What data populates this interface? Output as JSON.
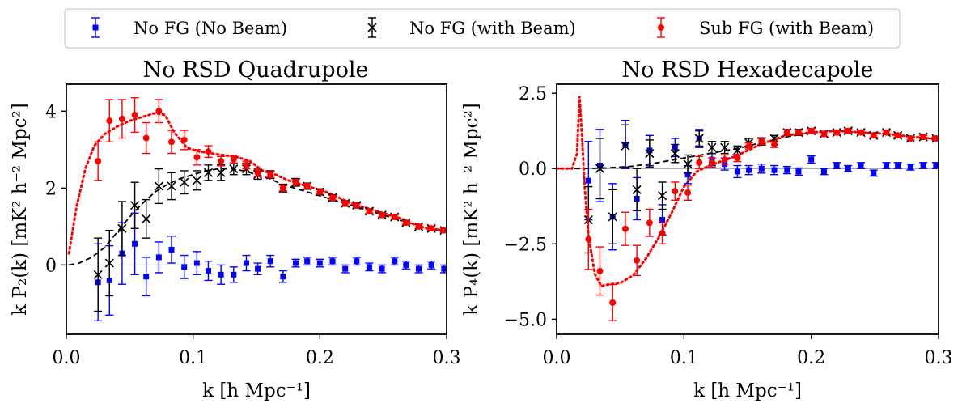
{
  "legend": [
    {
      "label": "No FG (No Beam)",
      "color": "#0000ff",
      "marker": "square"
    },
    {
      "label": "No FG (with Beam)",
      "color": "#000000",
      "marker": "x"
    },
    {
      "label": "Sub FG (with Beam)",
      "color": "#ff0000",
      "marker": "circle"
    }
  ],
  "chart_data": [
    {
      "type": "scatter",
      "title": "No RSD Quadrupole",
      "xlabel": "k [h Mpc⁻¹]",
      "ylabel": "k P₂(k) [mK² h⁻² Mpc²]",
      "xlim": [
        0.0,
        0.3
      ],
      "ylim": [
        -1.8,
        4.7
      ],
      "xticks": [
        0.0,
        0.1,
        0.2,
        0.3
      ],
      "xtick_labels": [
        "0.0",
        "0.1",
        "0.2",
        "0.3"
      ],
      "yticks": [
        0,
        2,
        4
      ],
      "ytick_labels": [
        "0",
        "2",
        "4"
      ],
      "zero_line": true,
      "series": [
        {
          "name": "No FG (No Beam)",
          "color": "#0000ff",
          "marker": "square",
          "x": [
            0.025,
            0.034,
            0.044,
            0.054,
            0.063,
            0.073,
            0.083,
            0.093,
            0.103,
            0.112,
            0.122,
            0.132,
            0.142,
            0.151,
            0.161,
            0.171,
            0.181,
            0.19,
            0.2,
            0.21,
            0.22,
            0.229,
            0.239,
            0.249,
            0.259,
            0.268,
            0.278,
            0.288,
            0.298
          ],
          "y": [
            -0.45,
            -0.4,
            0.3,
            0.55,
            -0.3,
            0.2,
            0.4,
            -0.05,
            0.05,
            -0.15,
            -0.25,
            -0.25,
            0.05,
            -0.1,
            0.1,
            -0.3,
            0.05,
            0.1,
            0.05,
            0.1,
            -0.1,
            0.1,
            -0.05,
            -0.1,
            0.1,
            0.0,
            -0.1,
            0.0,
            -0.1
          ],
          "err": [
            1.0,
            0.9,
            0.8,
            0.8,
            0.5,
            0.4,
            0.35,
            0.3,
            0.3,
            0.25,
            0.25,
            0.2,
            0.2,
            0.15,
            0.15,
            0.15,
            0.1,
            0.1,
            0.1,
            0.1,
            0.1,
            0.1,
            0.1,
            0.1,
            0.1,
            0.1,
            0.1,
            0.1,
            0.1
          ]
        },
        {
          "name": "No FG (with Beam)",
          "color": "#000000",
          "marker": "x",
          "x": [
            0.025,
            0.034,
            0.044,
            0.054,
            0.063,
            0.073,
            0.083,
            0.093,
            0.103,
            0.112,
            0.122,
            0.132,
            0.142,
            0.151,
            0.161,
            0.171,
            0.181,
            0.19,
            0.2,
            0.21,
            0.22,
            0.229,
            0.239,
            0.249,
            0.259,
            0.268,
            0.278,
            0.288,
            0.298
          ],
          "y": [
            -0.25,
            0.05,
            0.95,
            1.55,
            1.2,
            2.05,
            2.05,
            2.15,
            2.2,
            2.4,
            2.4,
            2.5,
            2.5,
            2.35,
            2.35,
            2.0,
            2.15,
            2.05,
            1.9,
            1.75,
            1.6,
            1.55,
            1.4,
            1.3,
            1.25,
            1.1,
            1.0,
            0.95,
            0.9
          ],
          "err": [
            0.95,
            0.85,
            0.7,
            0.6,
            0.5,
            0.45,
            0.35,
            0.3,
            0.25,
            0.2,
            0.2,
            0.15,
            0.15,
            0.12,
            0.1,
            0.1,
            0.1,
            0.08,
            0.08,
            0.08,
            0.07,
            0.07,
            0.06,
            0.06,
            0.06,
            0.05,
            0.05,
            0.05,
            0.05
          ]
        },
        {
          "name": "Sub FG (with Beam)",
          "color": "#ff0000",
          "marker": "circle",
          "x": [
            0.025,
            0.034,
            0.044,
            0.054,
            0.063,
            0.073,
            0.083,
            0.093,
            0.103,
            0.112,
            0.122,
            0.132,
            0.142,
            0.151,
            0.161,
            0.171,
            0.181,
            0.19,
            0.2,
            0.21,
            0.22,
            0.229,
            0.239,
            0.249,
            0.259,
            0.268,
            0.278,
            0.288,
            0.298
          ],
          "y": [
            2.7,
            3.75,
            3.8,
            3.9,
            3.3,
            4.0,
            3.2,
            3.25,
            2.8,
            2.95,
            2.7,
            2.75,
            2.6,
            2.4,
            2.35,
            2.0,
            2.15,
            2.05,
            1.9,
            1.75,
            1.6,
            1.55,
            1.4,
            1.3,
            1.25,
            1.1,
            1.0,
            0.95,
            0.9
          ],
          "err": [
            0.5,
            0.55,
            0.5,
            0.45,
            0.4,
            0.3,
            0.3,
            0.25,
            0.2,
            0.15,
            0.12,
            0.1,
            0.1,
            0.1,
            0.08,
            0.08,
            0.07,
            0.07,
            0.06,
            0.06,
            0.06,
            0.05,
            0.05,
            0.05,
            0.05,
            0.05,
            0.05,
            0.05,
            0.05
          ]
        }
      ],
      "lines": [
        {
          "name": "No FG model",
          "color": "#000000",
          "style": "dashed",
          "x": [
            0.002,
            0.01,
            0.02,
            0.03,
            0.04,
            0.05,
            0.06,
            0.07,
            0.08,
            0.09,
            0.1,
            0.11,
            0.12,
            0.13,
            0.14,
            0.15,
            0.16,
            0.17,
            0.18,
            0.19,
            0.2,
            0.21,
            0.22,
            0.23,
            0.24,
            0.25,
            0.26,
            0.27,
            0.28,
            0.29,
            0.3
          ],
          "y": [
            0.0,
            0.05,
            0.2,
            0.45,
            0.85,
            1.25,
            1.6,
            1.9,
            2.1,
            2.25,
            2.35,
            2.45,
            2.5,
            2.5,
            2.45,
            2.35,
            2.25,
            2.1,
            2.0,
            1.9,
            1.8,
            1.7,
            1.6,
            1.5,
            1.4,
            1.3,
            1.2,
            1.1,
            1.0,
            0.95,
            0.88
          ]
        },
        {
          "name": "Sub FG model",
          "color": "#ff0000",
          "style": "dotted",
          "x": [
            0.002,
            0.008,
            0.015,
            0.022,
            0.03,
            0.04,
            0.05,
            0.06,
            0.07,
            0.078,
            0.085,
            0.095,
            0.105,
            0.115,
            0.125,
            0.135,
            0.145,
            0.155,
            0.165,
            0.175,
            0.185,
            0.195,
            0.205,
            0.215,
            0.225,
            0.235,
            0.245,
            0.255,
            0.265,
            0.275,
            0.285,
            0.3
          ],
          "y": [
            0.3,
            1.5,
            2.5,
            3.1,
            3.4,
            3.6,
            3.75,
            3.85,
            3.95,
            3.9,
            3.45,
            3.05,
            2.95,
            2.9,
            2.85,
            2.8,
            2.7,
            2.45,
            2.35,
            2.2,
            2.1,
            2.0,
            1.9,
            1.75,
            1.6,
            1.5,
            1.4,
            1.3,
            1.2,
            1.05,
            0.95,
            0.88
          ]
        }
      ]
    },
    {
      "type": "scatter",
      "title": "No RSD Hexadecapole",
      "xlabel": "k [h Mpc⁻¹]",
      "ylabel": "k P₄(k) [mK² h⁻² Mpc²]",
      "xlim": [
        0.0,
        0.3
      ],
      "ylim": [
        -5.5,
        2.8
      ],
      "xticks": [
        0.0,
        0.1,
        0.2,
        0.3
      ],
      "xtick_labels": [
        "0.0",
        "0.1",
        "0.2",
        "0.3"
      ],
      "yticks": [
        2.5,
        0.0,
        -2.5,
        -5.0
      ],
      "ytick_labels": [
        "2.5",
        "0.0",
        "−2.5",
        "−5.0"
      ],
      "zero_line": true,
      "series": [
        {
          "name": "No FG (No Beam)",
          "color": "#0000ff",
          "marker": "square",
          "x": [
            0.025,
            0.034,
            0.044,
            0.054,
            0.063,
            0.073,
            0.083,
            0.093,
            0.103,
            0.112,
            0.122,
            0.132,
            0.142,
            0.151,
            0.161,
            0.171,
            0.181,
            0.19,
            0.2,
            0.21,
            0.22,
            0.229,
            0.239,
            0.249,
            0.259,
            0.268,
            0.278,
            0.288,
            0.298
          ],
          "y": [
            -0.4,
            0.1,
            -1.6,
            0.8,
            -1.0,
            0.6,
            -1.7,
            0.7,
            -0.2,
            1.0,
            0.3,
            0.15,
            -0.1,
            -0.05,
            0.0,
            -0.05,
            -0.05,
            -0.1,
            0.3,
            -0.1,
            0.1,
            0.0,
            0.1,
            -0.15,
            0.1,
            0.1,
            0.05,
            0.1,
            0.1
          ],
          "err": [
            1.3,
            1.2,
            1.1,
            0.8,
            0.7,
            0.5,
            0.5,
            0.3,
            0.3,
            0.3,
            0.2,
            0.2,
            0.2,
            0.15,
            0.15,
            0.15,
            0.12,
            0.12,
            0.12,
            0.1,
            0.1,
            0.1,
            0.1,
            0.1,
            0.1,
            0.1,
            0.1,
            0.1,
            0.1
          ]
        },
        {
          "name": "No FG (with Beam)",
          "color": "#000000",
          "marker": "x",
          "x": [
            0.025,
            0.034,
            0.044,
            0.054,
            0.063,
            0.073,
            0.083,
            0.093,
            0.103,
            0.112,
            0.122,
            0.132,
            0.142,
            0.151,
            0.161,
            0.171,
            0.181,
            0.19,
            0.2,
            0.21,
            0.22,
            0.229,
            0.239,
            0.249,
            0.259,
            0.268,
            0.278,
            0.288,
            0.298
          ],
          "y": [
            -1.7,
            0.0,
            -1.6,
            0.75,
            -0.7,
            0.5,
            -0.9,
            0.5,
            0.15,
            1.0,
            0.7,
            0.7,
            0.6,
            0.85,
            0.9,
            1.0,
            1.2,
            1.2,
            1.25,
            1.15,
            1.2,
            1.25,
            1.2,
            1.1,
            1.2,
            1.1,
            1.0,
            1.05,
            1.0
          ],
          "err": [
            1.1,
            1.0,
            0.9,
            0.7,
            0.7,
            0.45,
            0.45,
            0.3,
            0.3,
            0.25,
            0.2,
            0.2,
            0.15,
            0.15,
            0.12,
            0.1,
            0.1,
            0.1,
            0.08,
            0.08,
            0.08,
            0.07,
            0.07,
            0.07,
            0.06,
            0.06,
            0.06,
            0.06,
            0.06
          ]
        },
        {
          "name": "Sub FG (with Beam)",
          "color": "#ff0000",
          "marker": "circle",
          "x": [
            0.025,
            0.034,
            0.044,
            0.054,
            0.063,
            0.073,
            0.083,
            0.093,
            0.103,
            0.112,
            0.122,
            0.132,
            0.142,
            0.151,
            0.161,
            0.171,
            0.181,
            0.19,
            0.2,
            0.21,
            0.22,
            0.229,
            0.239,
            0.249,
            0.259,
            0.268,
            0.278,
            0.288,
            0.298
          ],
          "y": [
            -2.35,
            -3.4,
            -4.45,
            -2.0,
            -3.05,
            -1.8,
            -2.15,
            -0.75,
            -0.8,
            0.2,
            0.2,
            0.3,
            0.35,
            0.75,
            0.9,
            0.8,
            1.2,
            1.2,
            1.25,
            1.15,
            1.2,
            1.25,
            1.2,
            1.1,
            1.2,
            1.1,
            1.0,
            1.05,
            1.0
          ],
          "err": [
            1.0,
            0.8,
            0.6,
            0.55,
            0.5,
            0.45,
            0.35,
            0.3,
            0.25,
            0.2,
            0.15,
            0.15,
            0.12,
            0.1,
            0.1,
            0.1,
            0.1,
            0.08,
            0.08,
            0.08,
            0.07,
            0.07,
            0.07,
            0.06,
            0.06,
            0.06,
            0.06,
            0.06,
            0.06
          ]
        }
      ],
      "lines": [
        {
          "name": "No FG model",
          "color": "#000000",
          "style": "dashed",
          "x": [
            0.0,
            0.02,
            0.04,
            0.06,
            0.08,
            0.1,
            0.12,
            0.14,
            0.16,
            0.18,
            0.2,
            0.22,
            0.24,
            0.26,
            0.28,
            0.3
          ],
          "y": [
            0.0,
            0.0,
            0.02,
            0.08,
            0.2,
            0.35,
            0.5,
            0.65,
            0.85,
            1.05,
            1.2,
            1.25,
            1.2,
            1.15,
            1.05,
            0.98
          ]
        },
        {
          "name": "Sub FG model",
          "color": "#ff0000",
          "style": "dotted",
          "x": [
            0.0,
            0.012,
            0.016,
            0.018,
            0.02,
            0.022,
            0.025,
            0.03,
            0.035,
            0.04,
            0.05,
            0.06,
            0.07,
            0.08,
            0.09,
            0.1,
            0.11,
            0.12,
            0.14,
            0.16,
            0.18,
            0.2,
            0.22,
            0.24,
            0.26,
            0.28,
            0.3
          ],
          "y": [
            0.0,
            0.0,
            0.5,
            2.4,
            1.0,
            -0.6,
            -2.2,
            -3.5,
            -3.9,
            -3.85,
            -3.8,
            -3.55,
            -3.0,
            -2.3,
            -1.5,
            -0.6,
            -0.1,
            0.1,
            0.4,
            0.8,
            1.1,
            1.2,
            1.25,
            1.2,
            1.15,
            1.05,
            0.98
          ]
        }
      ]
    }
  ]
}
